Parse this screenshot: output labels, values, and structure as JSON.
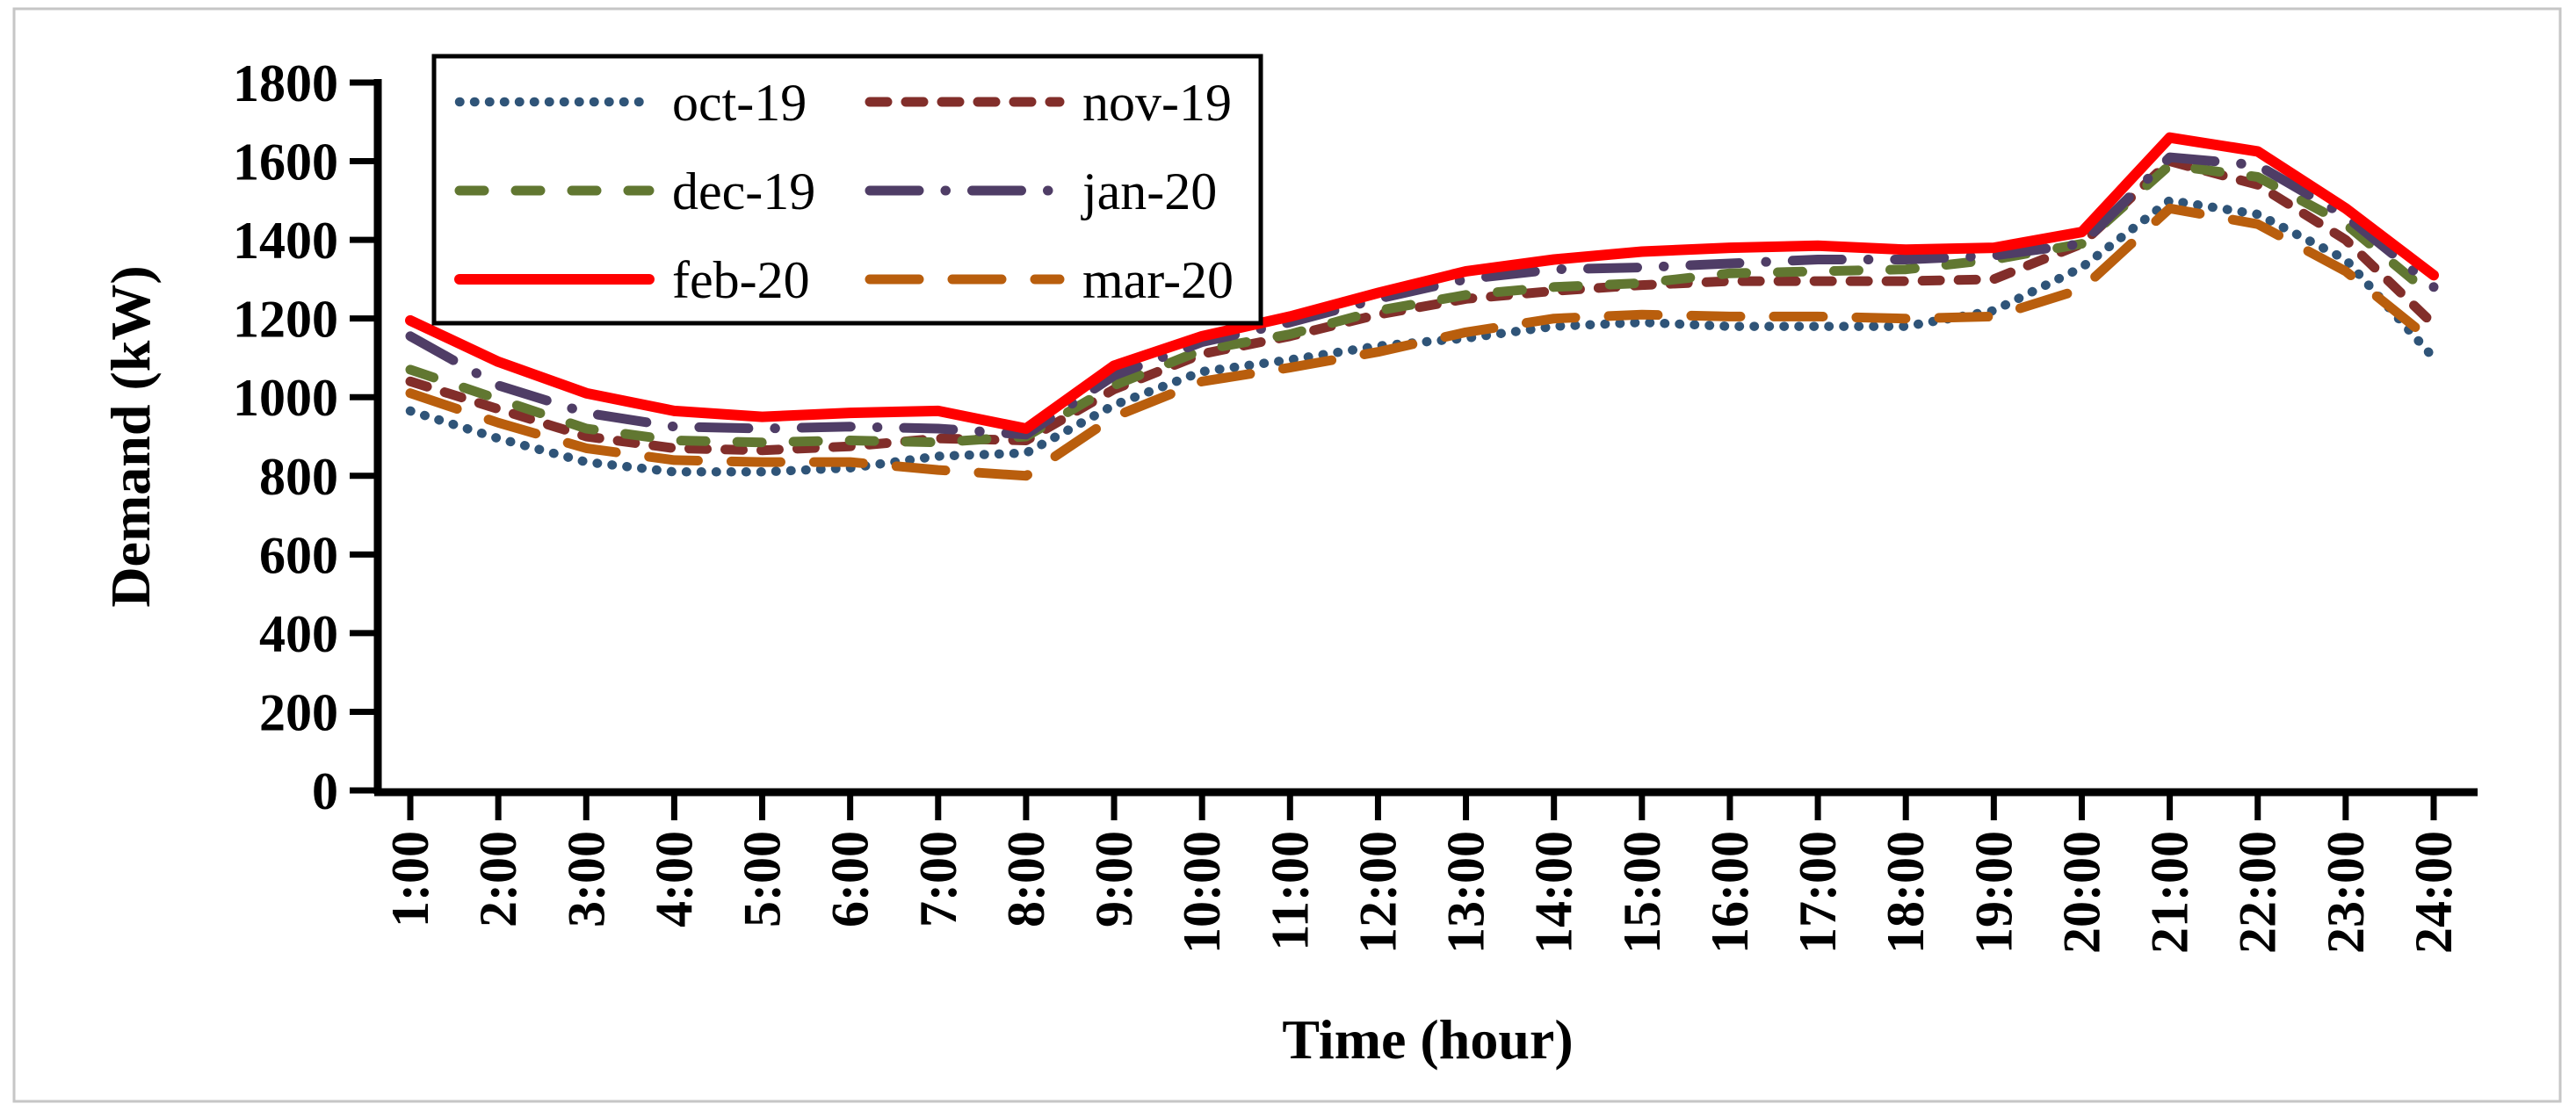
{
  "chart_data": {
    "type": "line",
    "title": "",
    "xlabel": "Time (hour)",
    "ylabel": "Demand (kW)",
    "x_categories": [
      "1:00",
      "2:00",
      "3:00",
      "4:00",
      "5:00",
      "6:00",
      "7:00",
      "8:00",
      "9:00",
      "10:00",
      "11:00",
      "12:00",
      "13:00",
      "14:00",
      "15:00",
      "16:00",
      "17:00",
      "18:00",
      "19:00",
      "20:00",
      "21:00",
      "22:00",
      "23:00",
      "24:00"
    ],
    "ylim": [
      0,
      1800
    ],
    "ytick_step": 200,
    "yticks": [
      0,
      200,
      400,
      600,
      800,
      1000,
      1200,
      1400,
      1600,
      1800
    ],
    "grid": false,
    "legend_position": "top-left-inside",
    "series": [
      {
        "name": "oct-19",
        "color": "#2F5478",
        "style": "dotted",
        "values": [
          965,
          895,
          835,
          810,
          810,
          820,
          850,
          858,
          980,
          1065,
          1095,
          1130,
          1150,
          1180,
          1190,
          1180,
          1180,
          1180,
          1220,
          1330,
          1500,
          1465,
          1350,
          1100
        ]
      },
      {
        "name": "nov-19",
        "color": "#822E2A",
        "style": "short-dash",
        "values": [
          1040,
          970,
          900,
          870,
          865,
          875,
          895,
          890,
          1020,
          1110,
          1155,
          1210,
          1250,
          1270,
          1285,
          1295,
          1295,
          1295,
          1300,
          1390,
          1600,
          1540,
          1400,
          1185
        ]
      },
      {
        "name": "dec-19",
        "color": "#617731",
        "style": "dash",
        "values": [
          1070,
          995,
          920,
          890,
          885,
          890,
          885,
          900,
          1030,
          1120,
          1160,
          1220,
          1260,
          1280,
          1290,
          1315,
          1320,
          1325,
          1350,
          1390,
          1590,
          1560,
          1440,
          1255
        ]
      },
      {
        "name": "jan-20",
        "color": "#4F3D66",
        "style": "dash-dot",
        "values": [
          1155,
          1030,
          960,
          925,
          920,
          925,
          920,
          905,
          1055,
          1140,
          1190,
          1250,
          1300,
          1325,
          1330,
          1340,
          1350,
          1350,
          1360,
          1390,
          1610,
          1590,
          1460,
          1280
        ]
      },
      {
        "name": "feb-20",
        "color": "#FF0000",
        "style": "solid",
        "values": [
          1195,
          1090,
          1010,
          965,
          950,
          960,
          965,
          920,
          1080,
          1155,
          1205,
          1265,
          1320,
          1350,
          1370,
          1380,
          1385,
          1375,
          1380,
          1420,
          1660,
          1625,
          1480,
          1310
        ]
      },
      {
        "name": "mar-20",
        "color": "#B95E0D",
        "style": "long-dash",
        "values": [
          1010,
          935,
          870,
          840,
          835,
          835,
          815,
          800,
          950,
          1040,
          1075,
          1115,
          1165,
          1200,
          1210,
          1205,
          1205,
          1200,
          1205,
          1275,
          1480,
          1440,
          1320,
          1140
        ]
      }
    ],
    "legend_layout": [
      [
        "oct-19",
        "nov-19"
      ],
      [
        "dec-19",
        "jan-20"
      ],
      [
        "feb-20",
        "mar-20"
      ]
    ]
  },
  "frame_color": "#c6c6c6",
  "axis_color": "#000000"
}
